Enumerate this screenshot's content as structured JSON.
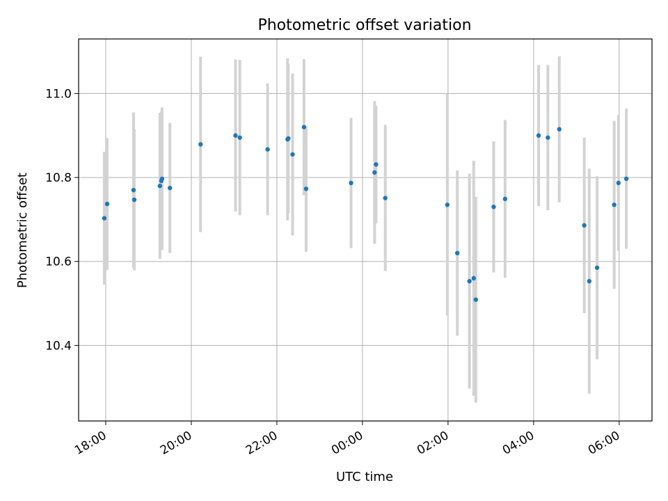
{
  "chart_data": {
    "type": "scatter",
    "title": "Photometric offset variation",
    "xlabel": "UTC time",
    "ylabel": "Photometric offset",
    "grid": true,
    "error_bar_color": "#d3d3d3",
    "point_color": "#1f77b4",
    "x_tick_labels": [
      "18:00",
      "20:00",
      "22:00",
      "00:00",
      "02:00",
      "04:00",
      "06:00"
    ],
    "y_tick_labels": [
      "10.4",
      "10.6",
      "10.8",
      "11.0"
    ],
    "y_ticks": [
      10.4,
      10.6,
      10.8,
      11.0
    ],
    "xlim": [
      "17:22",
      "06:46"
    ],
    "ylim": [
      10.22,
      11.13
    ],
    "points": [
      {
        "x": "17:58",
        "y": 10.703,
        "err": 0.158
      },
      {
        "x": "18:02",
        "y": 10.737,
        "err": 0.157
      },
      {
        "x": "18:39",
        "y": 10.77,
        "err": 0.185
      },
      {
        "x": "18:40",
        "y": 10.747,
        "err": 0.168
      },
      {
        "x": "19:16",
        "y": 10.78,
        "err": 0.174
      },
      {
        "x": "19:18",
        "y": 10.792,
        "err": 0.165
      },
      {
        "x": "19:19",
        "y": 10.797,
        "err": 0.17
      },
      {
        "x": "19:30",
        "y": 10.775,
        "err": 0.155
      },
      {
        "x": "20:13",
        "y": 10.879,
        "err": 0.209
      },
      {
        "x": "21:02",
        "y": 10.9,
        "err": 0.181
      },
      {
        "x": "21:08",
        "y": 10.895,
        "err": 0.185
      },
      {
        "x": "21:47",
        "y": 10.867,
        "err": 0.157
      },
      {
        "x": "22:15",
        "y": 10.891,
        "err": 0.193
      },
      {
        "x": "22:16",
        "y": 10.893,
        "err": 0.178
      },
      {
        "x": "22:22",
        "y": 10.855,
        "err": 0.193
      },
      {
        "x": "22:38",
        "y": 10.92,
        "err": 0.162
      },
      {
        "x": "22:41",
        "y": 10.773,
        "err": 0.15
      },
      {
        "x": "23:44",
        "y": 10.787,
        "err": 0.155
      },
      {
        "x": "00:17",
        "y": 10.812,
        "err": 0.17
      },
      {
        "x": "00:19",
        "y": 10.831,
        "err": 0.14
      },
      {
        "x": "00:32",
        "y": 10.751,
        "err": 0.174
      },
      {
        "x": "01:59",
        "y": 10.735,
        "err": 0.264
      },
      {
        "x": "02:13",
        "y": 10.62,
        "err": 0.197
      },
      {
        "x": "02:30",
        "y": 10.553,
        "err": 0.256
      },
      {
        "x": "02:36",
        "y": 10.56,
        "err": 0.28
      },
      {
        "x": "02:39",
        "y": 10.509,
        "err": 0.245
      },
      {
        "x": "03:04",
        "y": 10.73,
        "err": 0.156
      },
      {
        "x": "03:20",
        "y": 10.749,
        "err": 0.188
      },
      {
        "x": "04:07",
        "y": 10.9,
        "err": 0.168
      },
      {
        "x": "04:20",
        "y": 10.895,
        "err": 0.173
      },
      {
        "x": "04:36",
        "y": 10.915,
        "err": 0.174
      },
      {
        "x": "05:11",
        "y": 10.686,
        "err": 0.209
      },
      {
        "x": "05:18",
        "y": 10.553,
        "err": 0.268
      },
      {
        "x": "05:29",
        "y": 10.585,
        "err": 0.218
      },
      {
        "x": "05:53",
        "y": 10.735,
        "err": 0.2
      },
      {
        "x": "05:59",
        "y": 10.787,
        "err": 0.162
      },
      {
        "x": "06:10",
        "y": 10.797,
        "err": 0.167
      }
    ]
  }
}
